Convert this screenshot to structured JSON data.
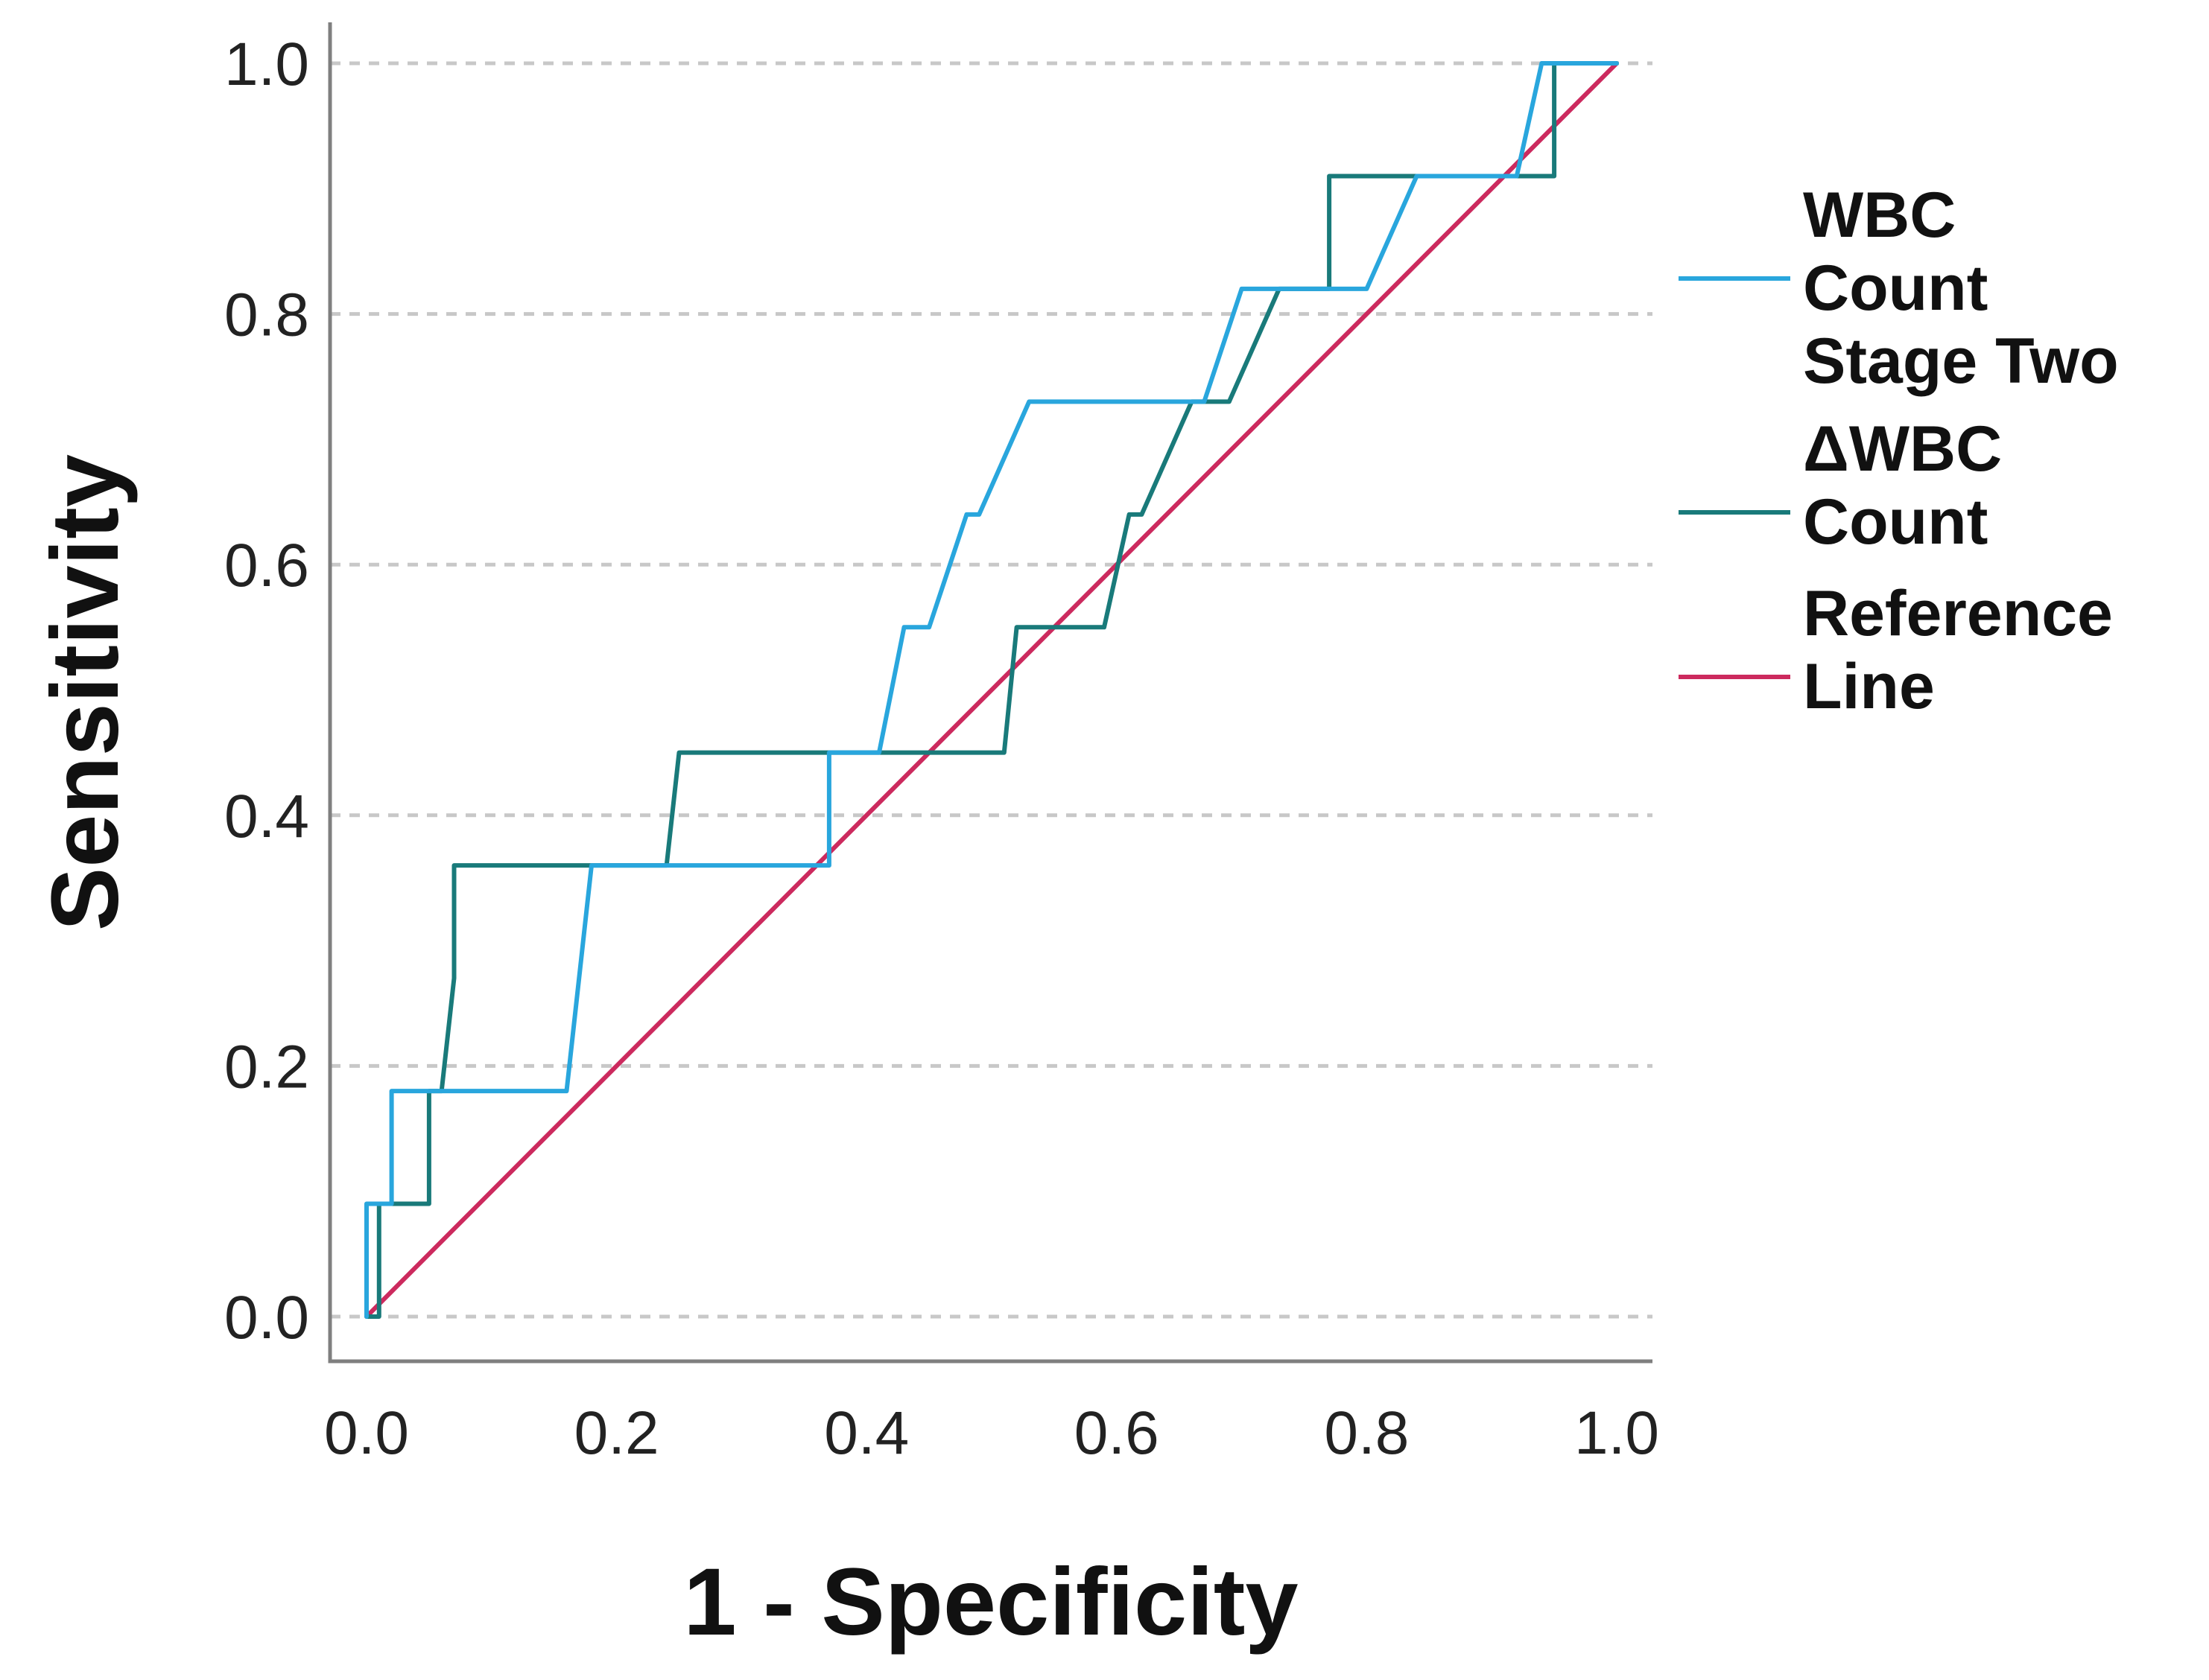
{
  "chart_data": {
    "type": "line",
    "title": "",
    "xlabel": "1 - Specificity",
    "ylabel": "Sensitivity",
    "xlim": [
      0,
      1
    ],
    "ylim": [
      0,
      1
    ],
    "x_ticks": [
      "0.0",
      "0.2",
      "0.4",
      "0.6",
      "0.8",
      "1.0"
    ],
    "y_ticks": [
      "0.0",
      "0.2",
      "0.4",
      "0.6",
      "0.8",
      "1.0"
    ],
    "grid": "horizontal-dashed",
    "legend_position": "right",
    "series": [
      {
        "name": "WBC Count Stage Two",
        "legend_lines": [
          "WBC",
          "Count",
          "Stage Two"
        ],
        "color": "#29a6dd",
        "x": [
          0.0,
          0.0,
          0.02,
          0.02,
          0.16,
          0.18,
          0.37,
          0.37,
          0.41,
          0.43,
          0.45,
          0.48,
          0.49,
          0.53,
          0.67,
          0.7,
          0.8,
          0.84,
          0.92,
          0.94,
          1.0
        ],
        "y": [
          0.0,
          0.09,
          0.09,
          0.18,
          0.18,
          0.36,
          0.36,
          0.45,
          0.45,
          0.55,
          0.55,
          0.64,
          0.64,
          0.73,
          0.73,
          0.82,
          0.82,
          0.91,
          0.91,
          1.0,
          1.0
        ]
      },
      {
        "name": "ΔWBC Count",
        "legend_lines": [
          "ΔWBC",
          "Count"
        ],
        "color": "#197a7a",
        "x": [
          0.0,
          0.01,
          0.01,
          0.05,
          0.05,
          0.06,
          0.07,
          0.07,
          0.24,
          0.25,
          0.51,
          0.52,
          0.59,
          0.61,
          0.62,
          0.66,
          0.69,
          0.73,
          0.77,
          0.77,
          0.95,
          0.95,
          1.0
        ],
        "y": [
          0.0,
          0.0,
          0.09,
          0.09,
          0.18,
          0.18,
          0.27,
          0.36,
          0.36,
          0.45,
          0.45,
          0.55,
          0.55,
          0.64,
          0.64,
          0.73,
          0.73,
          0.82,
          0.82,
          0.91,
          0.91,
          1.0,
          1.0
        ]
      },
      {
        "name": "Reference Line",
        "legend_lines": [
          "Reference",
          "Line"
        ],
        "color": "#cc2a5e",
        "x": [
          0.0,
          1.0
        ],
        "y": [
          0.0,
          1.0
        ]
      }
    ]
  }
}
